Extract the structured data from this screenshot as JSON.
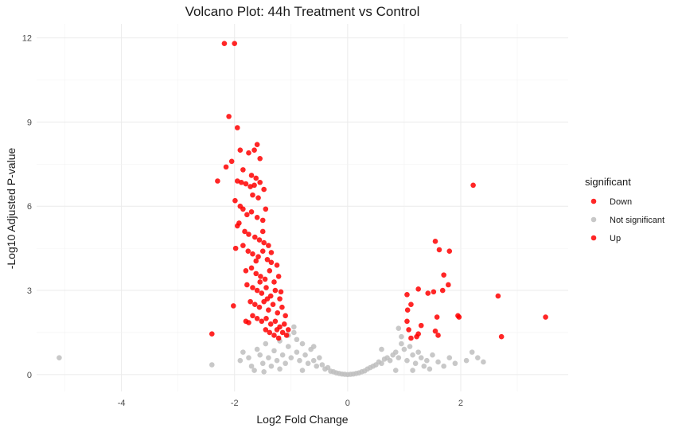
{
  "chart_data": {
    "type": "scatter",
    "title": "Volcano Plot: 44h Treatment vs Control",
    "xlabel": "Log2 Fold Change",
    "ylabel": "-Log10 Adjusted P-value",
    "xlim": [
      -5.5,
      3.9
    ],
    "ylim": [
      -0.6,
      12.5
    ],
    "x_ticks": [
      -4,
      -2,
      0,
      2
    ],
    "y_ticks": [
      0,
      3,
      6,
      9,
      12
    ],
    "x_tick_labels": [
      "-4",
      "-2",
      "0",
      "2"
    ],
    "y_tick_labels": [
      "0",
      "3",
      "6",
      "9",
      "12"
    ],
    "grid": true,
    "legend": {
      "title": "significant",
      "position": "right",
      "entries": [
        {
          "name": "Down",
          "color": "#ff0000"
        },
        {
          "name": "Not significant",
          "color": "#bebebe"
        },
        {
          "name": "Up",
          "color": "#ff0000"
        }
      ]
    },
    "series": [
      {
        "name": "Down",
        "color": "#ff0000",
        "points": [
          [
            -2.18,
            11.8
          ],
          [
            -2.0,
            11.8
          ],
          [
            -2.1,
            9.2
          ],
          [
            -1.95,
            8.8
          ],
          [
            -2.3,
            6.9
          ],
          [
            -2.15,
            7.4
          ],
          [
            -2.05,
            7.6
          ],
          [
            -1.9,
            8.0
          ],
          [
            -1.75,
            7.9
          ],
          [
            -1.6,
            8.2
          ],
          [
            -1.65,
            8.0
          ],
          [
            -1.55,
            7.7
          ],
          [
            -1.85,
            7.3
          ],
          [
            -1.7,
            7.1
          ],
          [
            -1.62,
            7.0
          ],
          [
            -1.95,
            6.9
          ],
          [
            -1.88,
            6.85
          ],
          [
            -1.8,
            6.8
          ],
          [
            -1.72,
            6.7
          ],
          [
            -1.65,
            6.75
          ],
          [
            -1.55,
            6.85
          ],
          [
            -1.48,
            6.6
          ],
          [
            -1.99,
            6.2
          ],
          [
            -1.9,
            6.0
          ],
          [
            -1.85,
            5.9
          ],
          [
            -1.78,
            5.7
          ],
          [
            -1.7,
            5.8
          ],
          [
            -1.6,
            5.6
          ],
          [
            -1.5,
            5.5
          ],
          [
            -1.45,
            5.9
          ],
          [
            -1.68,
            6.4
          ],
          [
            -1.58,
            6.3
          ],
          [
            -1.92,
            5.4
          ],
          [
            -1.82,
            5.1
          ],
          [
            -1.75,
            5.0
          ],
          [
            -1.64,
            4.9
          ],
          [
            -1.56,
            4.8
          ],
          [
            -1.48,
            4.7
          ],
          [
            -1.4,
            4.6
          ],
          [
            -1.98,
            4.5
          ],
          [
            -1.85,
            4.6
          ],
          [
            -1.76,
            4.4
          ],
          [
            -1.68,
            4.3
          ],
          [
            -1.58,
            4.2
          ],
          [
            -1.5,
            4.4
          ],
          [
            -1.42,
            4.1
          ],
          [
            -1.35,
            4.0
          ],
          [
            -1.8,
            3.7
          ],
          [
            -1.7,
            3.8
          ],
          [
            -1.62,
            3.6
          ],
          [
            -1.54,
            3.5
          ],
          [
            -1.46,
            3.4
          ],
          [
            -1.38,
            3.7
          ],
          [
            -1.3,
            3.3
          ],
          [
            -1.22,
            3.5
          ],
          [
            -1.78,
            3.2
          ],
          [
            -1.68,
            3.1
          ],
          [
            -1.6,
            3.0
          ],
          [
            -1.52,
            2.9
          ],
          [
            -1.44,
            3.1
          ],
          [
            -1.36,
            2.8
          ],
          [
            -1.28,
            3.0
          ],
          [
            -1.2,
            2.7
          ],
          [
            -1.72,
            2.6
          ],
          [
            -1.64,
            2.5
          ],
          [
            -1.56,
            2.4
          ],
          [
            -1.48,
            2.6
          ],
          [
            -1.4,
            2.3
          ],
          [
            -1.32,
            2.5
          ],
          [
            -1.24,
            2.2
          ],
          [
            -1.16,
            2.4
          ],
          [
            -1.1,
            2.1
          ],
          [
            -1.68,
            2.1
          ],
          [
            -1.6,
            2.0
          ],
          [
            -1.52,
            1.9
          ],
          [
            -1.44,
            2.0
          ],
          [
            -1.36,
            1.8
          ],
          [
            -1.28,
            1.9
          ],
          [
            -1.2,
            1.7
          ],
          [
            -1.12,
            1.8
          ],
          [
            -1.05,
            1.6
          ],
          [
            -1.8,
            1.9
          ],
          [
            -1.75,
            1.85
          ],
          [
            -1.45,
            1.6
          ],
          [
            -1.38,
            1.5
          ],
          [
            -1.3,
            1.4
          ],
          [
            -1.22,
            1.3
          ],
          [
            -1.15,
            1.5
          ],
          [
            -1.08,
            1.4
          ],
          [
            -1.25,
            1.6
          ],
          [
            -2.02,
            2.45
          ],
          [
            -2.4,
            1.45
          ],
          [
            -1.42,
            2.7
          ],
          [
            -1.55,
            3.3
          ],
          [
            -1.35,
            4.35
          ],
          [
            -1.25,
            3.9
          ],
          [
            -1.18,
            2.95
          ],
          [
            -1.62,
            4.05
          ],
          [
            -1.5,
            5.1
          ],
          [
            -1.95,
            5.3
          ]
        ]
      },
      {
        "name": "Up",
        "color": "#ff0000",
        "points": [
          [
            2.22,
            6.75
          ],
          [
            1.55,
            4.75
          ],
          [
            1.62,
            4.45
          ],
          [
            1.8,
            4.4
          ],
          [
            1.7,
            3.55
          ],
          [
            1.78,
            3.2
          ],
          [
            1.68,
            3.0
          ],
          [
            1.52,
            2.95
          ],
          [
            1.25,
            3.05
          ],
          [
            1.42,
            2.9
          ],
          [
            1.05,
            2.85
          ],
          [
            1.12,
            2.5
          ],
          [
            1.06,
            2.3
          ],
          [
            2.66,
            2.8
          ],
          [
            3.5,
            2.05
          ],
          [
            1.95,
            2.1
          ],
          [
            1.97,
            2.05
          ],
          [
            1.58,
            2.05
          ],
          [
            1.05,
            1.9
          ],
          [
            1.3,
            1.75
          ],
          [
            1.55,
            1.55
          ],
          [
            1.6,
            1.4
          ],
          [
            1.08,
            1.6
          ],
          [
            1.25,
            1.45
          ],
          [
            1.12,
            1.3
          ],
          [
            1.22,
            1.35
          ],
          [
            2.72,
            1.35
          ]
        ]
      },
      {
        "name": "Not significant",
        "color": "#bebebe",
        "points": [
          [
            -5.1,
            0.6
          ],
          [
            -2.4,
            0.35
          ],
          [
            -1.85,
            0.8
          ],
          [
            -1.9,
            0.5
          ],
          [
            -1.75,
            0.6
          ],
          [
            -1.7,
            0.3
          ],
          [
            -1.65,
            0.15
          ],
          [
            -1.6,
            0.9
          ],
          [
            -1.55,
            0.7
          ],
          [
            -1.5,
            0.4
          ],
          [
            -1.45,
            1.1
          ],
          [
            -1.4,
            0.6
          ],
          [
            -1.35,
            0.3
          ],
          [
            -1.3,
            0.85
          ],
          [
            -1.25,
            0.5
          ],
          [
            -1.2,
            1.2
          ],
          [
            -1.15,
            0.7
          ],
          [
            -1.1,
            0.4
          ],
          [
            -1.05,
            1.0
          ],
          [
            -1.0,
            0.6
          ],
          [
            -0.95,
            1.5
          ],
          [
            -0.9,
            0.8
          ],
          [
            -0.85,
            0.5
          ],
          [
            -0.8,
            1.1
          ],
          [
            -0.75,
            0.7
          ],
          [
            -0.7,
            0.4
          ],
          [
            -0.65,
            0.9
          ],
          [
            -0.6,
            0.5
          ],
          [
            -0.55,
            0.3
          ],
          [
            -0.5,
            0.6
          ],
          [
            -0.45,
            0.35
          ],
          [
            -0.4,
            0.2
          ],
          [
            -0.35,
            0.25
          ],
          [
            -0.3,
            0.12
          ],
          [
            -0.25,
            0.1
          ],
          [
            -0.2,
            0.06
          ],
          [
            -0.15,
            0.04
          ],
          [
            -0.1,
            0.02
          ],
          [
            -0.05,
            0.01
          ],
          [
            0.0,
            0.0
          ],
          [
            0.05,
            0.01
          ],
          [
            0.1,
            0.02
          ],
          [
            0.15,
            0.04
          ],
          [
            0.2,
            0.06
          ],
          [
            0.25,
            0.1
          ],
          [
            0.3,
            0.13
          ],
          [
            0.35,
            0.2
          ],
          [
            0.4,
            0.25
          ],
          [
            0.45,
            0.3
          ],
          [
            0.5,
            0.35
          ],
          [
            0.55,
            0.45
          ],
          [
            0.6,
            0.4
          ],
          [
            0.65,
            0.55
          ],
          [
            0.7,
            0.6
          ],
          [
            0.75,
            0.5
          ],
          [
            0.8,
            0.7
          ],
          [
            0.85,
            0.8
          ],
          [
            0.9,
            0.6
          ],
          [
            0.95,
            1.1
          ],
          [
            1.0,
            0.9
          ],
          [
            1.05,
            0.5
          ],
          [
            1.1,
            1.0
          ],
          [
            1.15,
            0.7
          ],
          [
            1.2,
            0.4
          ],
          [
            1.25,
            0.8
          ],
          [
            1.3,
            0.6
          ],
          [
            1.35,
            0.3
          ],
          [
            1.4,
            0.5
          ],
          [
            1.5,
            0.7
          ],
          [
            1.6,
            0.45
          ],
          [
            1.7,
            0.3
          ],
          [
            1.8,
            0.6
          ],
          [
            1.9,
            0.4
          ],
          [
            2.1,
            0.5
          ],
          [
            2.2,
            0.8
          ],
          [
            2.3,
            0.6
          ],
          [
            2.4,
            0.45
          ],
          [
            0.9,
            1.65
          ],
          [
            0.95,
            1.35
          ],
          [
            -0.95,
            1.7
          ],
          [
            -1.05,
            1.4
          ],
          [
            -0.9,
            1.25
          ],
          [
            -1.2,
            0.2
          ],
          [
            -0.8,
            0.15
          ],
          [
            0.85,
            0.15
          ],
          [
            1.15,
            0.15
          ],
          [
            -1.48,
            0.1
          ],
          [
            1.45,
            0.2
          ],
          [
            -0.6,
            1.0
          ],
          [
            0.6,
            0.9
          ]
        ]
      }
    ]
  }
}
